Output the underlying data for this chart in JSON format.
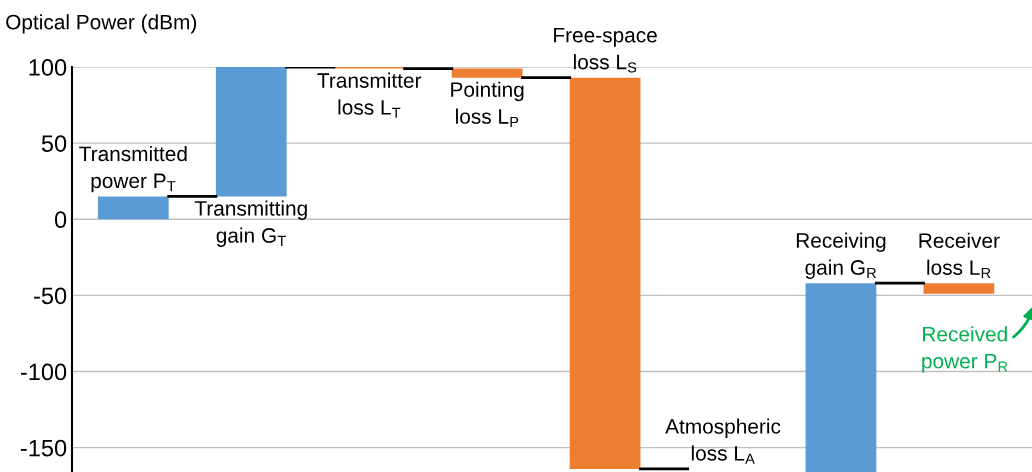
{
  "chart_data": {
    "type": "bar",
    "ylabel": "Optical Power (dBm)",
    "categories": [
      "Transmitted\npower P$_{T}$",
      "Transmitting\ngain G$_{T}$",
      "Transmitter\nloss L$_{T}$",
      "Pointing\nloss L$_{P}$",
      "Free-space\nloss L$_{S}$",
      "Atmospheric\nloss L$_{A}$",
      "Receiving\ngain G$_{R}$",
      "Receiver\nloss L$_{R}$"
    ],
    "base": [
      0,
      15,
      100,
      99,
      93,
      null,
      -166,
      -42
    ],
    "values": [
      15,
      85,
      -1,
      -6,
      -257,
      null,
      124,
      -7
    ],
    "colors": [
      "#5b9bd5",
      "#5b9bd5",
      "#ed7d31",
      "#ed7d31",
      "#ed7d31",
      "#ed7d31",
      "#5b9bd5",
      "#ed7d31"
    ],
    "ylim": [
      -166,
      100
    ],
    "yticks": [
      100,
      50,
      0,
      -50,
      -100,
      -150
    ],
    "grid": "y",
    "annotations": [
      "Received\npower P$_{R}$"
    ]
  }
}
